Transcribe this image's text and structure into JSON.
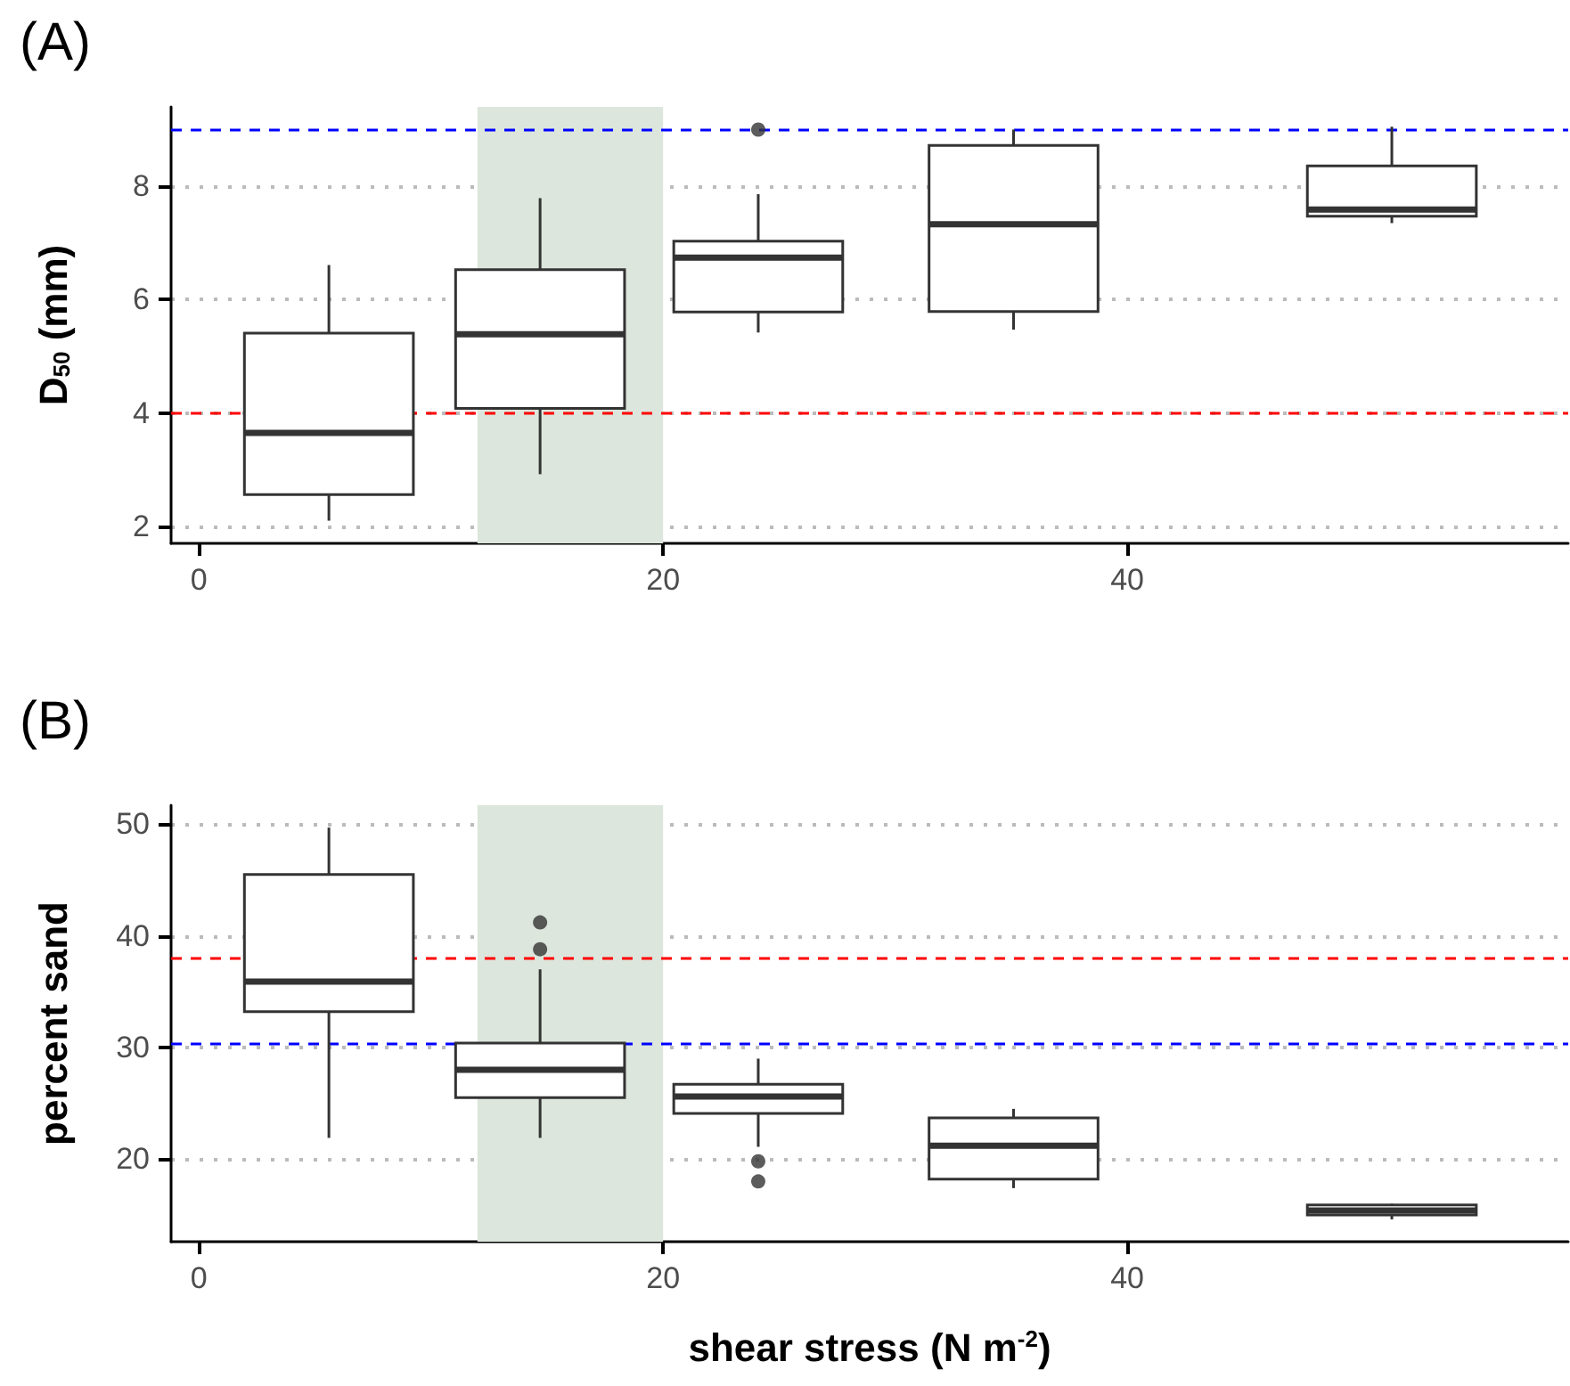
{
  "chart_data": [
    {
      "type": "box",
      "title": "(A)",
      "ylabel": "D$_{50}$ (mm)",
      "color": "#333333",
      "marker": "circle",
      "x": [
        5.6,
        14.7,
        24.1,
        35.1,
        51.4
      ],
      "boxes": [
        {
          "low": 2.1,
          "q1": 2.56,
          "median": 3.65,
          "q3": 5.41,
          "high": 6.61
        },
        {
          "low": 2.92,
          "q1": 4.08,
          "median": 5.39,
          "q3": 6.53,
          "high": 7.79
        },
        {
          "low": 5.42,
          "q1": 5.78,
          "median": 6.74,
          "q3": 7.03,
          "high": 7.86,
          "outliers": [
            9.0
          ]
        },
        {
          "low": 5.47,
          "q1": 5.79,
          "median": 7.33,
          "q3": 8.72,
          "high": 9.0
        },
        {
          "low": 7.35,
          "q1": 7.47,
          "median": 7.59,
          "q3": 8.36,
          "high": 9.05
        }
      ],
      "xlim": [
        -1.2,
        59
      ],
      "xticks": [
        0,
        20,
        40
      ],
      "ylim": [
        1.7,
        9.4
      ],
      "yticks": [
        2,
        4,
        6,
        8
      ],
      "grid": "y",
      "ref_lines": [
        {
          "axis": "y",
          "value": 9.0,
          "color": "#0000ff",
          "line_style": "dashed"
        },
        {
          "axis": "y",
          "value": 4.0,
          "color": "#ff0000",
          "line_style": "dashed"
        }
      ],
      "bands": [
        {
          "axis": "x",
          "from": 12,
          "to": 20,
          "color": "#dce6dc"
        }
      ]
    },
    {
      "type": "box",
      "title": "(B)",
      "ylabel": "percent sand",
      "xlabel": "shear stress (N m$^{-2}$)",
      "color": "#333333",
      "marker": "circle",
      "x": [
        5.6,
        14.7,
        24.1,
        35.1,
        51.4
      ],
      "boxes": [
        {
          "low": 21.9,
          "q1": 33.2,
          "median": 35.9,
          "q3": 45.5,
          "high": 49.7
        },
        {
          "low": 21.9,
          "q1": 25.5,
          "median": 28.0,
          "q3": 30.4,
          "high": 37.0,
          "outliers": [
            41.2,
            38.8
          ]
        },
        {
          "low": 21.1,
          "q1": 24.1,
          "median": 25.6,
          "q3": 26.7,
          "high": 29.0,
          "outliers": [
            19.8,
            18.0
          ]
        },
        {
          "low": 17.4,
          "q1": 18.2,
          "median": 21.2,
          "q3": 23.7,
          "high": 24.5
        },
        {
          "low": 14.6,
          "q1": 15.0,
          "median": 15.4,
          "q3": 15.9,
          "high": 16.0
        }
      ],
      "xlim": [
        -1.2,
        59
      ],
      "xticks": [
        0,
        20,
        40
      ],
      "ylim": [
        12.6,
        51.7
      ],
      "yticks": [
        20,
        30,
        40,
        50
      ],
      "grid": "y",
      "ref_lines": [
        {
          "axis": "y",
          "value": 38.0,
          "color": "#ff0000",
          "line_style": "dashed"
        },
        {
          "axis": "y",
          "value": 30.4,
          "color": "#0000ff",
          "line_style": "dashed"
        }
      ],
      "bands": [
        {
          "axis": "x",
          "from": 12,
          "to": 20,
          "color": "#dce6dc"
        }
      ]
    }
  ]
}
